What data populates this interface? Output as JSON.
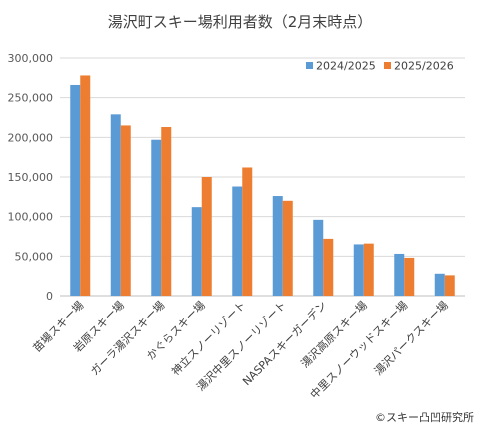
{
  "chart_data": {
    "type": "bar",
    "title": "湯沢町スキー場利用者数（2月末時点）",
    "categories": [
      "苗場スキー場",
      "岩原スキー場",
      "ガーラ湯沢スキー場",
      "かぐらスキー場",
      "神立スノーリゾート",
      "湯沢中里スノーリゾート",
      "NASPAスキーガーデン",
      "湯沢高原スキー場",
      "中里スノーウッドスキー場",
      "湯沢パークスキー場"
    ],
    "series": [
      {
        "name": "2024/2025",
        "color": "#5B9BD5",
        "values": [
          266000,
          229000,
          197000,
          112000,
          138000,
          126000,
          96000,
          65000,
          53000,
          28000
        ]
      },
      {
        "name": "2025/2026",
        "color": "#ED7D31",
        "values": [
          278000,
          215000,
          213000,
          150000,
          162000,
          120000,
          72000,
          66000,
          48000,
          26000
        ]
      }
    ],
    "ylim": [
      0,
      300000
    ],
    "yticks": [
      "0",
      "50,000",
      "100,000",
      "150,000",
      "200,000",
      "250,000",
      "300,000"
    ],
    "grid": true,
    "legend": "top-right"
  },
  "credit": "©スキー凸凹研究所"
}
